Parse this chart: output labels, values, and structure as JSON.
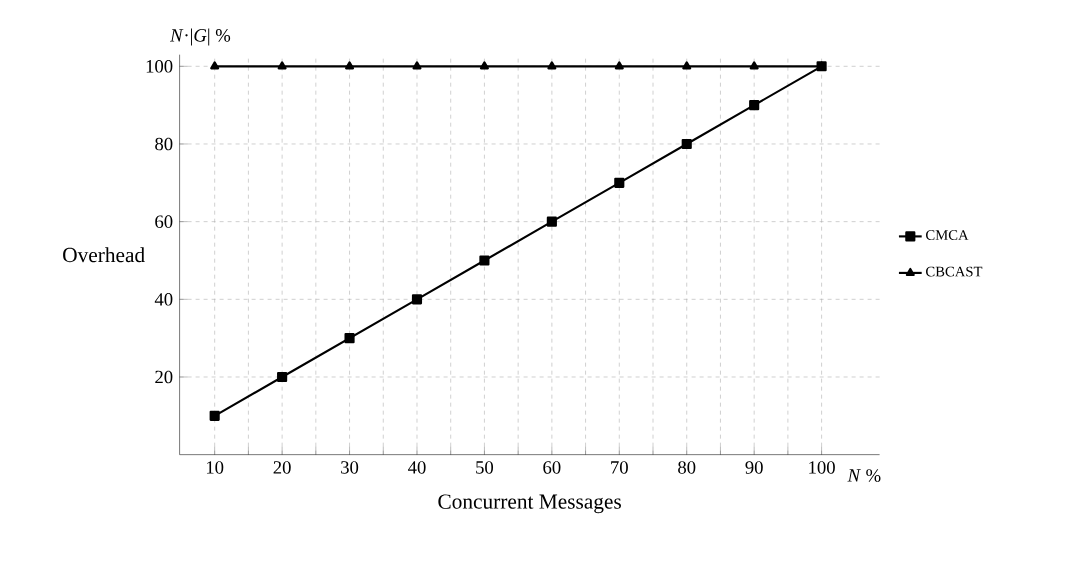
{
  "chart_data": {
    "type": "line",
    "xlabel": "Concurrent Messages",
    "ylabel": "Overhead",
    "categories": [
      "10",
      "20",
      "30",
      "40",
      "50",
      "60",
      "70",
      "80",
      "90",
      "100"
    ],
    "series": [
      {
        "name": "CMCA",
        "color": "#000000",
        "marker": "square",
        "values": [
          10,
          20,
          30,
          40,
          50,
          60,
          70,
          80,
          90,
          100
        ]
      },
      {
        "name": "CBCAST",
        "color": "#000000",
        "marker": "triangle",
        "values": [
          100,
          100,
          100,
          100,
          100,
          100,
          100,
          100,
          100,
          100
        ]
      }
    ],
    "ylim": [
      0,
      103
    ],
    "yticks": [
      20,
      40,
      60,
      80,
      100
    ],
    "grid": true,
    "legend": "right",
    "line_style": "solid",
    "annotations": [
      "*N*·|*G*| %",
      "*N* %"
    ]
  }
}
